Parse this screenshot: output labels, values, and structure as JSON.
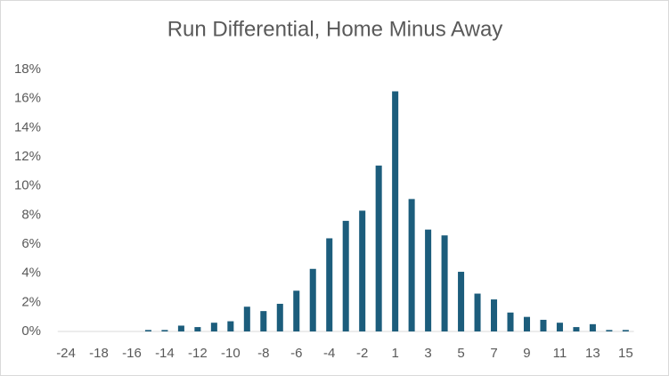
{
  "chart_data": {
    "type": "bar",
    "title": "Run Differential, Home Minus Away",
    "categories": [
      -24,
      null,
      -18,
      null,
      -16,
      null,
      -14,
      null,
      -12,
      null,
      -10,
      null,
      -8,
      null,
      -6,
      null,
      -4,
      null,
      -2,
      null,
      1,
      null,
      3,
      null,
      5,
      null,
      7,
      null,
      9,
      null,
      11,
      null,
      13,
      null,
      15
    ],
    "values": [
      0,
      0,
      0,
      0,
      0,
      0.1,
      0.1,
      0.4,
      0.3,
      0.6,
      0.7,
      1.7,
      1.4,
      1.9,
      2.8,
      4.3,
      6.4,
      7.6,
      8.3,
      11.4,
      16.5,
      9.1,
      7.0,
      6.6,
      4.1,
      2.6,
      2.2,
      1.3,
      1.0,
      0.8,
      0.6,
      0.3,
      0.5,
      0.1,
      0.1
    ],
    "color": "#1c5d7c",
    "ylim": [
      0,
      18
    ],
    "yticks": [
      {
        "value": 0,
        "label": "0%"
      },
      {
        "value": 2,
        "label": "2%"
      },
      {
        "value": 4,
        "label": "4%"
      },
      {
        "value": 6,
        "label": "6%"
      },
      {
        "value": 8,
        "label": "8%"
      },
      {
        "value": 10,
        "label": "10%"
      },
      {
        "value": 12,
        "label": "12%"
      },
      {
        "value": 14,
        "label": "14%"
      },
      {
        "value": 16,
        "label": "16%"
      },
      {
        "value": 18,
        "label": "18%"
      }
    ],
    "grid": false
  }
}
